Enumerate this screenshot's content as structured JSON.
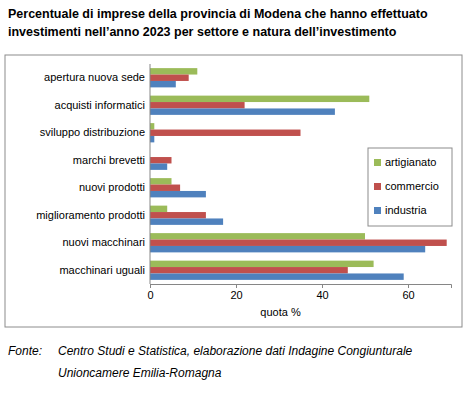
{
  "chart_data": {
    "type": "bar",
    "orientation": "horizontal",
    "title": "Percentuale di imprese della provincia di Modena che hanno effettuato investimenti nell’anno 2023 per settore e natura dell’investimento",
    "x_label": "quota %",
    "source_label": "Fonte:",
    "source": "Centro Studi e Statistica, elaborazione dati Indagine Congiunturale Unioncamere Emilia-Romagna",
    "categories": [
      "apertura nuova sede",
      "acquisti informatici",
      "sviluppo distribuzione",
      "marchi brevetti",
      "nuovi prodotti",
      "miglioramento prodotti",
      "nuovi macchinari",
      "macchinari uguali"
    ],
    "series": [
      {
        "name": "artigianato",
        "color": "#9bbb59",
        "values": [
          11,
          51,
          1,
          0,
          5,
          4,
          50,
          52
        ]
      },
      {
        "name": "commercio",
        "color": "#c0504d",
        "values": [
          9,
          22,
          35,
          5,
          7,
          13,
          69,
          46
        ]
      },
      {
        "name": "industria",
        "color": "#4f81bd",
        "values": [
          6,
          43,
          1,
          4,
          13,
          17,
          64,
          59
        ]
      }
    ],
    "xlim": [
      0,
      70
    ],
    "xticks": [
      0,
      20,
      40,
      60
    ],
    "grid": false,
    "legend": "right"
  }
}
